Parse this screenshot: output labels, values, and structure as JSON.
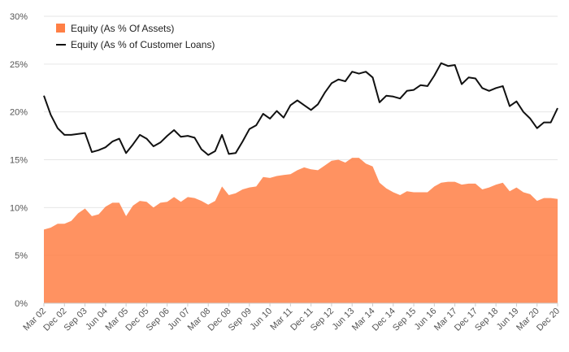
{
  "chart_data": {
    "type": "area",
    "y_axis": {
      "min": 0,
      "max": 30,
      "ticks": [
        0,
        5,
        10,
        15,
        20,
        25,
        30
      ],
      "tick_format": "%"
    },
    "grid": "horizontal",
    "legend_position": "top-left",
    "x_tick_labels": [
      "Mar 02",
      "Dec 02",
      "Sep 03",
      "Jun 04",
      "Mar 05",
      "Dec 05",
      "Sep 06",
      "Jun 07",
      "Mar 08",
      "Dec 08",
      "Sep 09",
      "Jun 10",
      "Mar 11",
      "Dec 11",
      "Sep 12",
      "Jun 13",
      "Mar 14",
      "Dec 14",
      "Sep 15",
      "Jun 16",
      "Mar 17",
      "Dec 17",
      "Sep 18",
      "Jun 19",
      "Mar 20",
      "Dec 20"
    ],
    "series": [
      {
        "name": "Equity (As % Of Assets)",
        "kind": "area",
        "color": "#ff7f45",
        "values": [
          7.7,
          7.9,
          8.3,
          8.3,
          8.6,
          9.4,
          9.9,
          9.1,
          9.3,
          10.1,
          10.5,
          10.5,
          9.1,
          10.2,
          10.7,
          10.6,
          10.0,
          10.5,
          10.6,
          11.1,
          10.6,
          11.1,
          11.0,
          10.7,
          10.3,
          10.7,
          12.2,
          11.3,
          11.5,
          11.9,
          12.1,
          12.2,
          13.2,
          13.1,
          13.3,
          13.4,
          13.5,
          13.9,
          14.2,
          14.0,
          13.9,
          14.4,
          14.9,
          15.0,
          14.7,
          15.2,
          15.2,
          14.6,
          14.3,
          12.6,
          12.0,
          11.6,
          11.3,
          11.7,
          11.6,
          11.6,
          11.6,
          12.2,
          12.6,
          12.7,
          12.7,
          12.4,
          12.5,
          12.5,
          11.9,
          12.1,
          12.4,
          12.6,
          11.7,
          12.1,
          11.6,
          11.4,
          10.7,
          11.0,
          11.0,
          10.9
        ]
      },
      {
        "name": "Equity (As % of Customer Loans)",
        "kind": "line",
        "color": "#111111",
        "values": [
          21.7,
          19.7,
          18.3,
          17.6,
          17.6,
          17.7,
          17.8,
          15.8,
          16.0,
          16.3,
          16.9,
          17.2,
          15.7,
          16.6,
          17.6,
          17.2,
          16.4,
          16.8,
          17.5,
          18.1,
          17.4,
          17.5,
          17.3,
          16.1,
          15.5,
          15.9,
          17.6,
          15.6,
          15.7,
          16.9,
          18.2,
          18.6,
          19.8,
          19.3,
          20.1,
          19.4,
          20.7,
          21.2,
          20.7,
          20.2,
          20.8,
          22.0,
          23.0,
          23.4,
          23.2,
          24.2,
          24.0,
          24.2,
          23.6,
          21.0,
          21.7,
          21.6,
          21.4,
          22.2,
          22.3,
          22.8,
          22.7,
          23.8,
          25.1,
          24.8,
          24.9,
          22.9,
          23.6,
          23.5,
          22.5,
          22.2,
          22.5,
          22.7,
          20.6,
          21.1,
          20.0,
          19.3,
          18.3,
          18.9,
          18.9,
          20.4
        ]
      }
    ]
  }
}
